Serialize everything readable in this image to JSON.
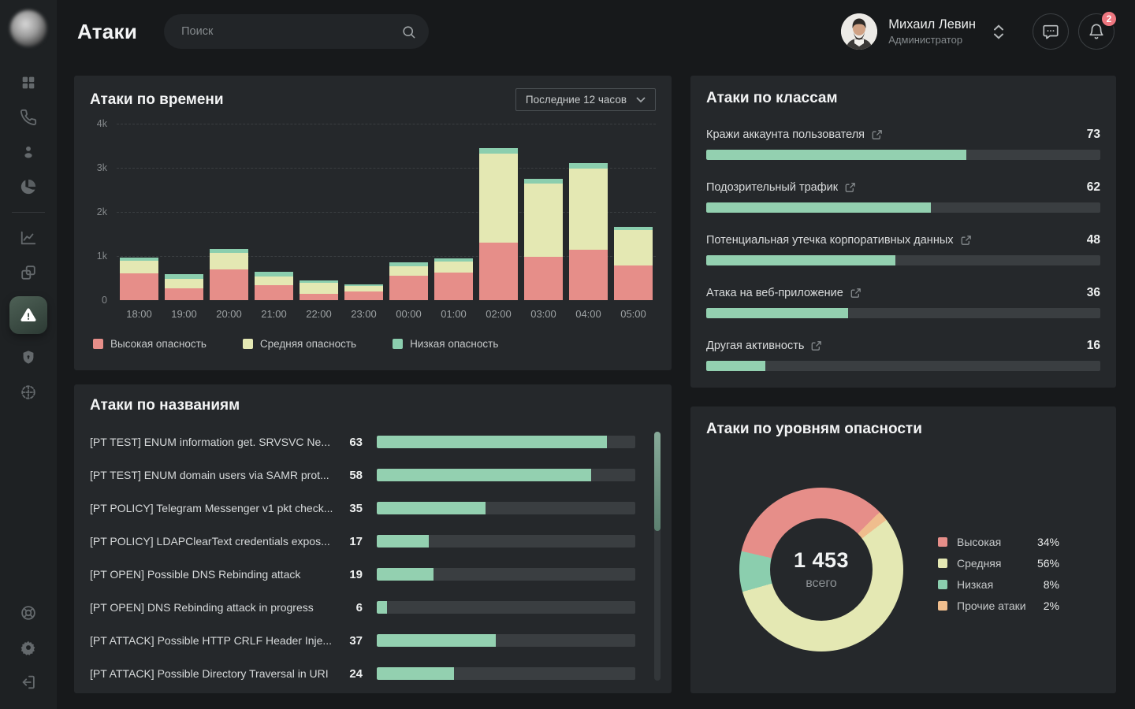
{
  "header": {
    "title": "Атаки",
    "search_placeholder": "Поиск",
    "user_name": "Михаил Левин",
    "user_role": "Администратор",
    "notification_count": "2"
  },
  "sidebar": {
    "icons": [
      "dashboard",
      "phone",
      "user",
      "pie-chart",
      "line-chart",
      "copy",
      "alerts",
      "shield",
      "network",
      "support",
      "settings",
      "logout"
    ],
    "active": "alerts"
  },
  "colors": {
    "high": "#e68e89",
    "medium": "#e4e8b3",
    "low": "#8bceae",
    "other": "#efbd8d",
    "accent_bar": "#93d0b0",
    "badge": "#ee7780"
  },
  "chart_data": [
    {
      "type": "bar",
      "stacked": true,
      "title": "Атаки по времени",
      "range_label": "Последние 12 часов",
      "categories": [
        "18:00",
        "19:00",
        "20:00",
        "21:00",
        "22:00",
        "23:00",
        "00:00",
        "01:00",
        "02:00",
        "03:00",
        "04:00",
        "05:00"
      ],
      "series": [
        {
          "name": "Высокая опасность",
          "color": "#e68e89",
          "values": [
            610,
            260,
            690,
            340,
            150,
            200,
            550,
            620,
            1310,
            980,
            1150,
            790
          ]
        },
        {
          "name": "Средняя опасность",
          "color": "#e4e8b3",
          "values": [
            280,
            230,
            390,
            200,
            250,
            130,
            220,
            250,
            2010,
            1660,
            1830,
            800
          ]
        },
        {
          "name": "Низкая опасность",
          "color": "#8bceae",
          "values": [
            80,
            100,
            80,
            110,
            45,
            30,
            85,
            80,
            130,
            110,
            130,
            80
          ]
        }
      ],
      "ylim": [
        0,
        4000
      ],
      "yticks": [
        {
          "label": "4k",
          "value": 4000
        },
        {
          "label": "3k",
          "value": 3000
        },
        {
          "label": "2k",
          "value": 2000
        },
        {
          "label": "1k",
          "value": 1000
        },
        {
          "label": "0",
          "value": 0
        }
      ],
      "grid": "horizontal-dashed",
      "legend_position": "bottom"
    },
    {
      "type": "bar",
      "orientation": "horizontal",
      "title": "Атаки по названиям",
      "items": [
        {
          "label": "[PT TEST] ENUM information get. SRVSVC Ne...",
          "value": 63,
          "bar_pct": 89
        },
        {
          "label": "[PT TEST] ENUM domain users via SAMR prot...",
          "value": 58,
          "bar_pct": 83
        },
        {
          "label": "[PT POLICY] Telegram Messenger v1 pkt check...",
          "value": 35,
          "bar_pct": 42
        },
        {
          "label": "[PT POLICY] LDAPClearText credentials expos...",
          "value": 17,
          "bar_pct": 20
        },
        {
          "label": "[PT OPEN] Possible DNS Rebinding attack",
          "value": 19,
          "bar_pct": 22
        },
        {
          "label": "[PT OPEN] DNS Rebinding attack in progress",
          "value": 6,
          "bar_pct": 4
        },
        {
          "label": "[PT ATTACK] Possible HTTP CRLF Header Inje...",
          "value": 37,
          "bar_pct": 46
        },
        {
          "label": "[PT ATTACK] Possible Directory Traversal in URI",
          "value": 24,
          "bar_pct": 30
        }
      ],
      "scrollbar": {
        "visible": true,
        "thumb_pct": 40
      }
    },
    {
      "type": "bar",
      "orientation": "horizontal",
      "title": "Атаки по классам",
      "items": [
        {
          "label": "Кражи аккаунта пользователя",
          "value": 73,
          "bar_pct": 66
        },
        {
          "label": "Подозрительный трафик",
          "value": 62,
          "bar_pct": 57
        },
        {
          "label": "Потенциальная утечка корпоративных данных",
          "value": 48,
          "bar_pct": 48
        },
        {
          "label": "Атака на веб-приложение",
          "value": 36,
          "bar_pct": 36
        },
        {
          "label": "Другая активность",
          "value": 16,
          "bar_pct": 15
        }
      ]
    },
    {
      "type": "pie",
      "donut": true,
      "title": "Атаки по уровням опасности",
      "total": "1 453",
      "total_label": "всего",
      "slices": [
        {
          "label": "Высокая",
          "pct": 34,
          "color": "#e68e89"
        },
        {
          "label": "Средняя",
          "pct": 56,
          "color": "#e4e8b3"
        },
        {
          "label": "Низкая",
          "pct": 8,
          "color": "#8bceae"
        },
        {
          "label": "Прочие атаки",
          "pct": 2,
          "color": "#efbd8d"
        }
      ],
      "start_angle_deg": 283,
      "draw_order": [
        "Высокая",
        "Прочие атаки",
        "Средняя",
        "Низкая"
      ],
      "legend_position": "right"
    }
  ]
}
